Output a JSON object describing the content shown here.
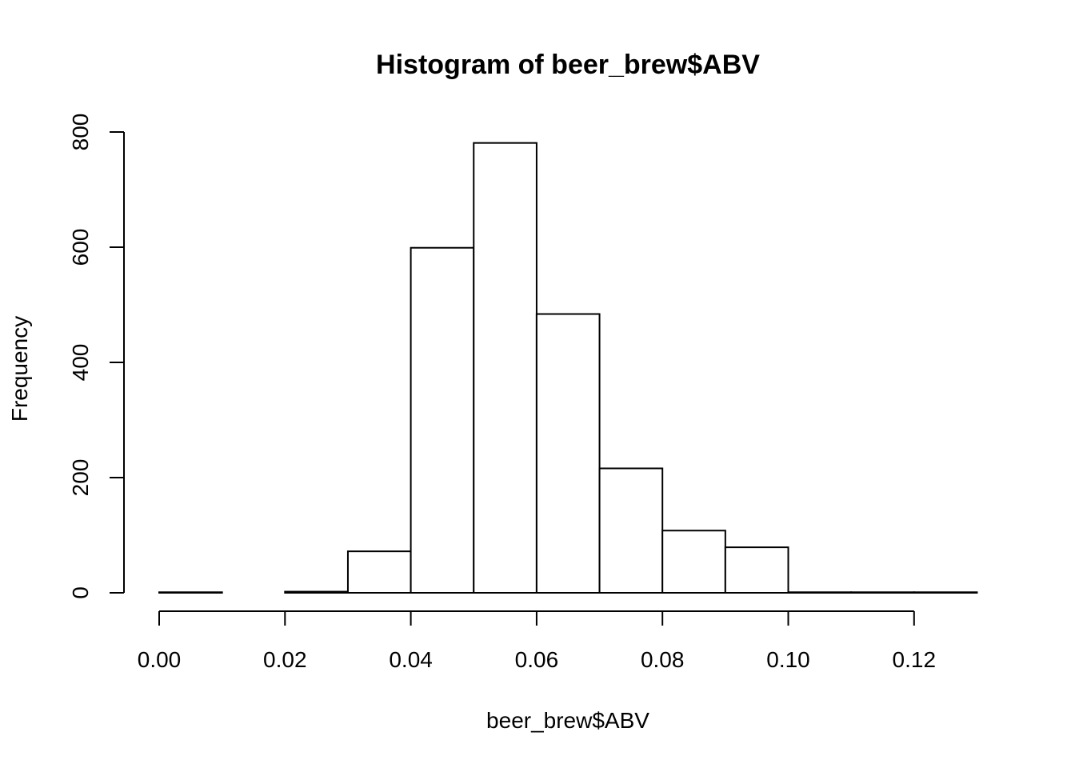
{
  "chart_data": {
    "type": "bar",
    "title": "Histogram of beer_brew$ABV",
    "xlabel": "beer_brew$ABV",
    "ylabel": "Frequency",
    "bins": [
      {
        "x0": 0.0,
        "x1": 0.01,
        "count": 1
      },
      {
        "x0": 0.01,
        "x1": 0.02,
        "count": 0
      },
      {
        "x0": 0.02,
        "x1": 0.03,
        "count": 2
      },
      {
        "x0": 0.03,
        "x1": 0.04,
        "count": 72
      },
      {
        "x0": 0.04,
        "x1": 0.05,
        "count": 599
      },
      {
        "x0": 0.05,
        "x1": 0.06,
        "count": 781
      },
      {
        "x0": 0.06,
        "x1": 0.07,
        "count": 484
      },
      {
        "x0": 0.07,
        "x1": 0.08,
        "count": 216
      },
      {
        "x0": 0.08,
        "x1": 0.09,
        "count": 108
      },
      {
        "x0": 0.09,
        "x1": 0.1,
        "count": 79
      },
      {
        "x0": 0.1,
        "x1": 0.11,
        "count": 1
      },
      {
        "x0": 0.11,
        "x1": 0.12,
        "count": 1
      },
      {
        "x0": 0.12,
        "x1": 0.13,
        "count": 1
      }
    ],
    "xlim": [
      0,
      0.13
    ],
    "ylim": [
      0,
      800
    ],
    "xticks": [
      0.0,
      0.02,
      0.04,
      0.06,
      0.08,
      0.1,
      0.12
    ],
    "xtick_labels": [
      "0.00",
      "0.02",
      "0.04",
      "0.06",
      "0.08",
      "0.10",
      "0.12"
    ],
    "yticks": [
      0,
      200,
      400,
      600,
      800
    ],
    "ytick_labels": [
      "0",
      "200",
      "400",
      "600",
      "800"
    ],
    "grid": false,
    "colors": {
      "bar_fill": "#ffffff",
      "bar_stroke": "#000000",
      "axis": "#000000"
    }
  }
}
